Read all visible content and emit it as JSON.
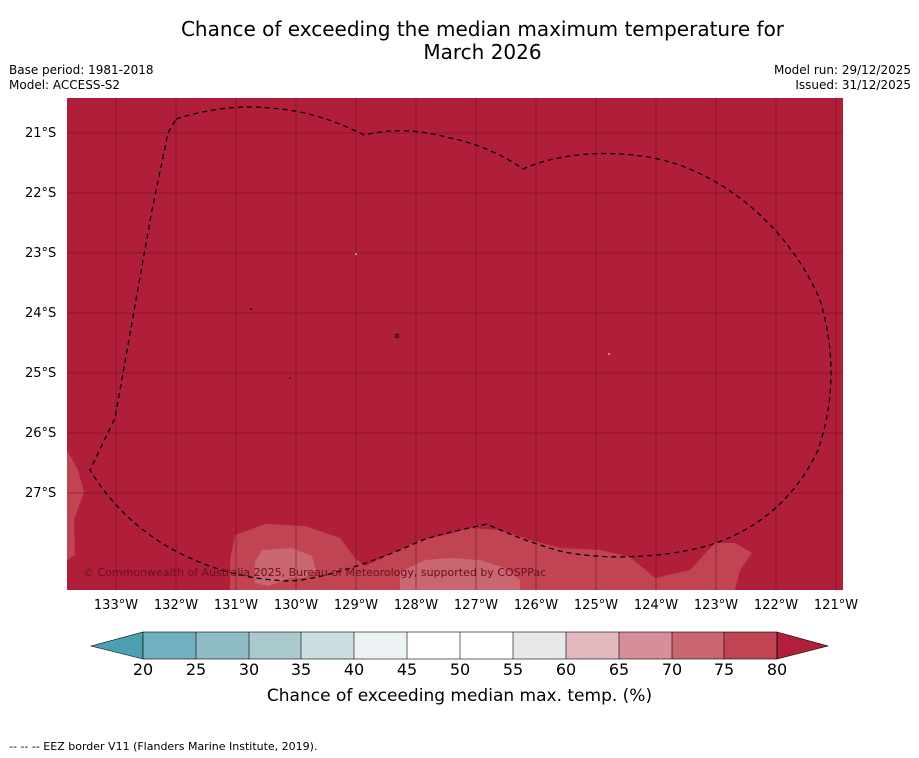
{
  "title_line1": "Chance of exceeding the median maximum temperature for",
  "title_line2": "March 2026",
  "base_period": "Base period: 1981-2018",
  "model": "Model: ACCESS-S2",
  "model_run": "Model run: 29/12/2025",
  "issued": "Issued: 31/12/2025",
  "copyright": "© Commonwealth of Australia 2025, Bureau of Meteorology, supported by COSPPac",
  "latitudes": [
    "21°S",
    "22°S",
    "23°S",
    "24°S",
    "25°S",
    "26°S",
    "27°S"
  ],
  "longitudes": [
    "133°W",
    "132°W",
    "131°W",
    "130°W",
    "129°W",
    "128°W",
    "127°W",
    "126°W",
    "125°W",
    "124°W",
    "123°W",
    "122°W",
    "121°W"
  ],
  "colorbar": {
    "title": "Chance of exceeding median max. temp. (%)",
    "ticks": [
      "20",
      "25",
      "30",
      "35",
      "40",
      "45",
      "50",
      "55",
      "60",
      "65",
      "70",
      "75",
      "80"
    ],
    "colors": [
      "#4a9fb0",
      "#6fb1c0",
      "#90bcc8",
      "#aac9cf",
      "#cbdde1",
      "#ecf2f4",
      "#ffffff",
      "#ffffff",
      "#e8e8e8",
      "#e3b9bf",
      "#d88e98",
      "#c9666f",
      "#c14452",
      "#b11f3a"
    ]
  },
  "field_colors": {
    "dominant": "#b11e3a",
    "lighter": "#c14452",
    "light": "#c9666f",
    "lightest": "#d88e98"
  },
  "footnote": "--  --  -- EEZ border V11 (Flanders Marine Institute, 2019)."
}
